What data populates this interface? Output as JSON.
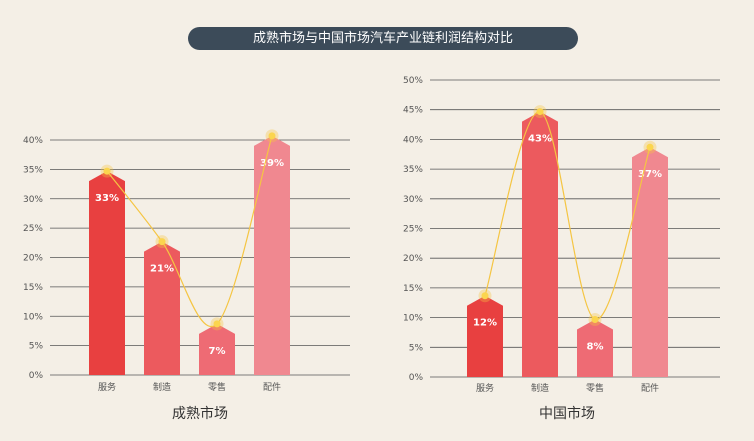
{
  "title": "成熟市场与中国市场汽车产业链利润结构对比",
  "colors": {
    "bars": [
      "#e84040",
      "#ec5a5e",
      "#ee6b74",
      "#f08890"
    ],
    "curve": "#f5c542",
    "grid": "#555555",
    "title_bg": "#3c4b59"
  },
  "chart_data": [
    {
      "type": "bar",
      "title": "成熟市场",
      "categories": [
        "服务",
        "制造",
        "零售",
        "配件"
      ],
      "values": [
        33,
        21,
        7,
        39
      ],
      "data_labels": [
        "33%",
        "21%",
        "7%",
        "39%"
      ],
      "ylim": [
        0,
        40
      ],
      "yticks": [
        "0%",
        "5%",
        "10%",
        "15%",
        "20%",
        "25%",
        "30%",
        "35%",
        "40%"
      ],
      "grid": true
    },
    {
      "type": "bar",
      "title": "中国市场",
      "categories": [
        "服务",
        "制造",
        "零售",
        "配件"
      ],
      "values": [
        12,
        43,
        8,
        37
      ],
      "data_labels": [
        "12%",
        "43%",
        "8%",
        "37%"
      ],
      "ylim": [
        0,
        50
      ],
      "yticks": [
        "0%",
        "5%",
        "10%",
        "15%",
        "20%",
        "25%",
        "30%",
        "35%",
        "40%",
        "45%",
        "50%"
      ],
      "grid": true
    }
  ]
}
